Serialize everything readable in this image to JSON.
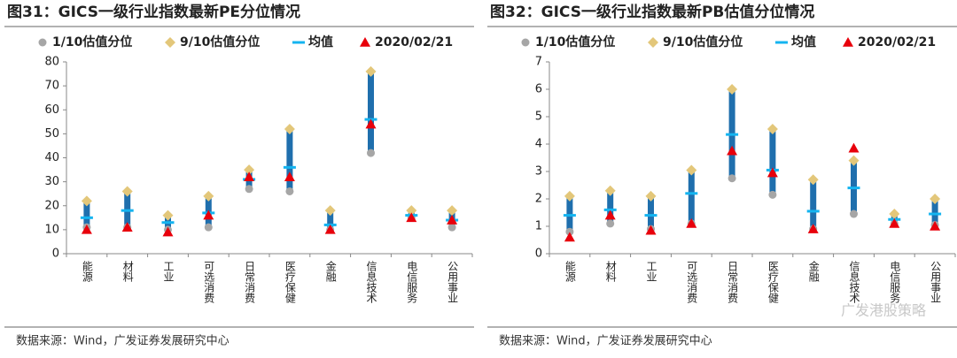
{
  "chart_data": [
    {
      "type": "range",
      "title": "图31：GICS一级行业指数最新PE分位情况",
      "source": "数据来源：Wind，广发证券发展研究中心",
      "categories": [
        "能源",
        "材料",
        "工业",
        "可选消费",
        "日常消费",
        "医疗保健",
        "金融",
        "信息技术",
        "电信服务",
        "公用事业"
      ],
      "range_color": "#1f6fad",
      "series": [
        {
          "name": "1/10估值分位",
          "color": "#a6a6a6",
          "marker": "circle",
          "values": [
            11,
            11,
            10,
            11,
            27,
            26,
            10,
            42,
            15,
            11
          ]
        },
        {
          "name": "9/10估值分位",
          "color": "#e3c77a",
          "marker": "diamond",
          "values": [
            22,
            26,
            16,
            24,
            35,
            52,
            18,
            76,
            18,
            18
          ]
        },
        {
          "name": "均值",
          "color": "#14b4f0",
          "marker": "dash",
          "values": [
            15,
            18,
            13,
            17,
            31,
            36,
            12,
            56,
            16,
            14
          ]
        },
        {
          "name": "2020/02/21",
          "color": "#e8000b",
          "marker": "triangle",
          "values": [
            10,
            11,
            9,
            16,
            32,
            32,
            10,
            54,
            15,
            14
          ]
        }
      ],
      "ylim": [
        0,
        80
      ],
      "yticks": [
        0,
        10,
        20,
        30,
        40,
        50,
        60,
        70,
        80
      ]
    },
    {
      "type": "range",
      "title": "图32：GICS一级行业指数最新PB估值分位情况",
      "source": "数据来源：Wind，广发证券发展研究中心",
      "categories": [
        "能源",
        "材料",
        "工业",
        "可选消费",
        "日常消费",
        "医疗保健",
        "金融",
        "信息技术",
        "电信服务",
        "公用事业"
      ],
      "range_color": "#1f6fad",
      "series": [
        {
          "name": "1/10估值分位",
          "color": "#a6a6a6",
          "marker": "circle",
          "values": [
            0.8,
            1.1,
            0.9,
            1.1,
            2.75,
            2.15,
            0.9,
            1.45,
            1.1,
            1.05
          ]
        },
        {
          "name": "9/10估值分位",
          "color": "#e3c77a",
          "marker": "diamond",
          "values": [
            2.1,
            2.3,
            2.1,
            3.05,
            6.0,
            4.55,
            2.7,
            3.4,
            1.45,
            2.0
          ]
        },
        {
          "name": "均值",
          "color": "#14b4f0",
          "marker": "dash",
          "values": [
            1.4,
            1.6,
            1.4,
            2.2,
            4.35,
            3.05,
            1.55,
            2.4,
            1.25,
            1.45
          ]
        },
        {
          "name": "2020/02/21",
          "color": "#e8000b",
          "marker": "triangle",
          "values": [
            0.6,
            1.4,
            0.85,
            1.1,
            3.75,
            2.95,
            0.9,
            3.85,
            1.1,
            1.0
          ]
        }
      ],
      "ylim": [
        0,
        7
      ],
      "yticks": [
        0,
        1,
        2,
        3,
        4,
        5,
        6,
        7
      ]
    }
  ],
  "watermark": "广发港股策略"
}
